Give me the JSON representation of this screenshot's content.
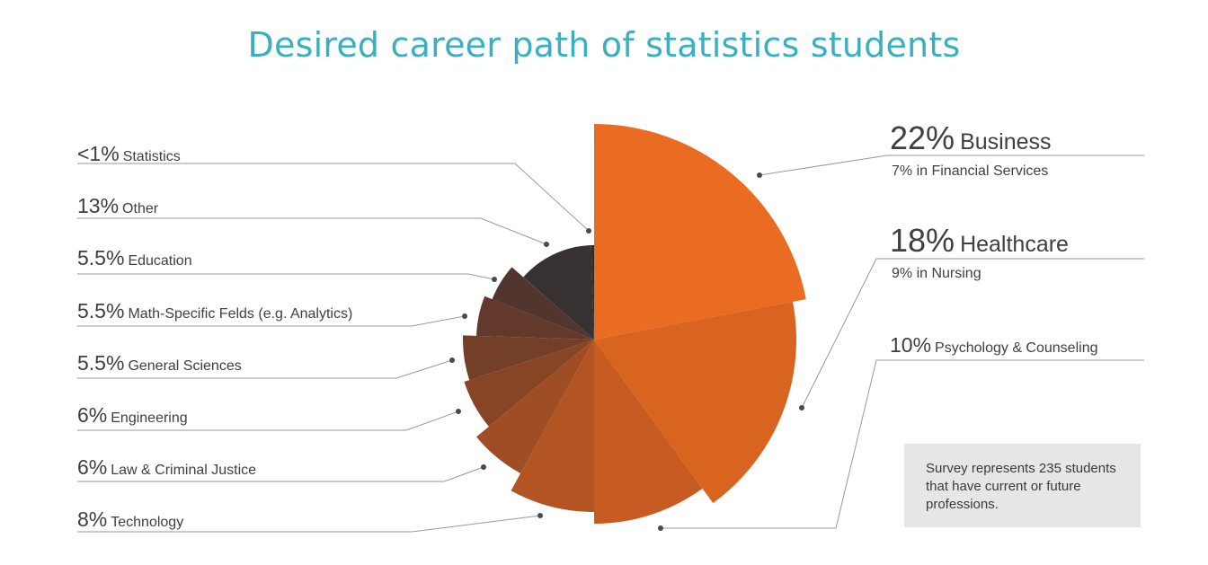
{
  "chart_data": {
    "type": "pie",
    "title": "Desired career path of statistics students",
    "note": "Survey represents 235 students that have current or future professions.",
    "slices": [
      {
        "pct_label": "22%",
        "category": "Business",
        "value": 22,
        "sub": "7% in Financial Services",
        "color": "#ea6c22"
      },
      {
        "pct_label": "18%",
        "category": "Healthcare",
        "value": 18,
        "sub": "9% in Nursing",
        "color": "#d96420"
      },
      {
        "pct_label": "10%",
        "category": "Psychology & Counseling",
        "value": 10,
        "color": "#c75b22"
      },
      {
        "pct_label": "8%",
        "category": "Technology",
        "value": 8,
        "color": "#b35423"
      },
      {
        "pct_label": "6%",
        "category": "Law & Criminal Justice",
        "value": 6,
        "color": "#9e4d24"
      },
      {
        "pct_label": "6%",
        "category": "Engineering",
        "value": 6,
        "color": "#874526"
      },
      {
        "pct_label": "5.5%",
        "category": "General Sciences",
        "value": 5.5,
        "color": "#743f28"
      },
      {
        "pct_label": "5.5%",
        "category": "Math-Specific Felds (e.g. Analytics)",
        "value": 5.5,
        "color": "#63392b"
      },
      {
        "pct_label": "5.5%",
        "category": "Education",
        "value": 5.5,
        "color": "#52352f"
      },
      {
        "pct_label": "13%",
        "category": "Other",
        "value": 13,
        "color": "#373132"
      },
      {
        "pct_label": "<1%",
        "category": "Statistics",
        "value": 0.5,
        "color": "#2e2b2c"
      }
    ]
  }
}
